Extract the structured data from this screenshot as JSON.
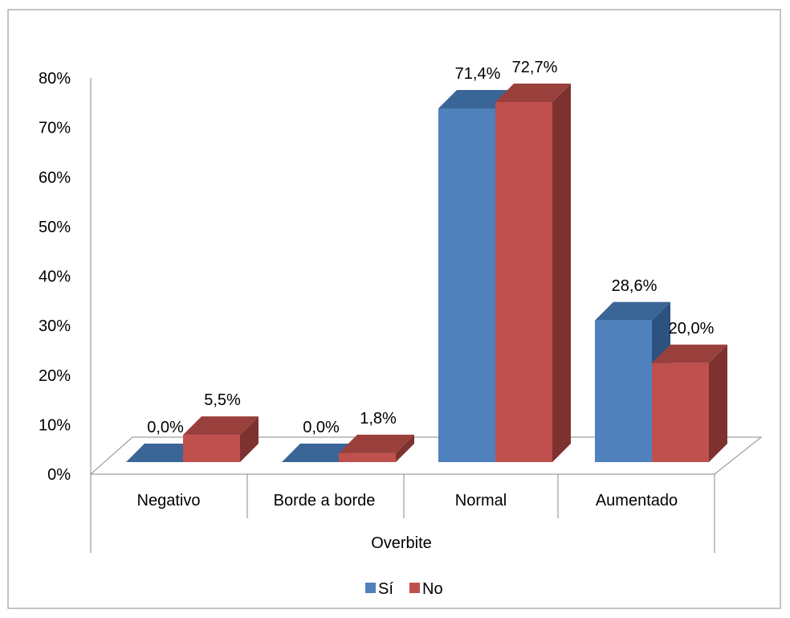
{
  "chart_data": {
    "type": "bar",
    "categories": [
      "Negativo",
      "Borde a borde",
      "Normal",
      "Aumentado"
    ],
    "series": [
      {
        "name": "Sí",
        "values": [
          0.0,
          0.0,
          71.4,
          28.6
        ],
        "labels": [
          "0,0%",
          "0,0%",
          "71,4%",
          "28,6%"
        ]
      },
      {
        "name": "No",
        "values": [
          5.5,
          1.8,
          72.7,
          20.0
        ],
        "labels": [
          "5,5%",
          "1,8%",
          "72,7%",
          "20,0%"
        ]
      }
    ],
    "xlabel": "Overbite",
    "ylabel": "",
    "ylim": [
      0,
      80
    ],
    "yticks": [
      "0%",
      "10%",
      "20%",
      "30%",
      "40%",
      "50%",
      "60%",
      "70%",
      "80%"
    ],
    "legend_position": "bottom",
    "three_d": true,
    "grid": false
  },
  "colors": {
    "si_front": "#4F81BD",
    "si_top": "#3A6597",
    "si_side": "#2E5280",
    "no_front": "#C0504D",
    "no_top": "#99403D",
    "no_side": "#7D3230",
    "axis": "#888888",
    "border": "#888888"
  }
}
